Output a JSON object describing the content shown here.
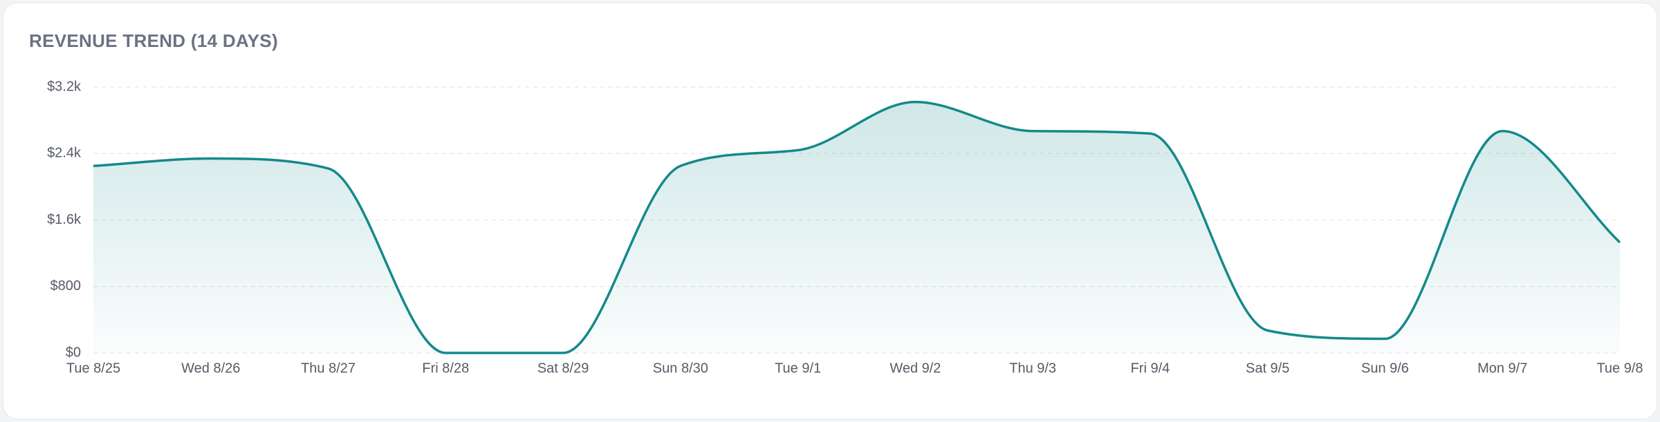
{
  "chart_data": {
    "type": "area",
    "title": "REVENUE TREND (14 DAYS)",
    "categories": [
      "Tue 8/25",
      "Wed 8/26",
      "Thu 8/27",
      "Fri 8/28",
      "Sat 8/29",
      "Sun 8/30",
      "Tue 9/1",
      "Wed 9/2",
      "Thu 9/3",
      "Fri 9/4",
      "Sat 9/5",
      "Sun 9/6",
      "Mon 9/7",
      "Tue 9/8"
    ],
    "values": [
      2250,
      2340,
      2220,
      0,
      0,
      2250,
      2440,
      3020,
      2670,
      2640,
      270,
      170,
      2670,
      1330
    ],
    "color": "#14898a",
    "ylim": [
      0,
      3200
    ],
    "yticks": [
      {
        "value": 0,
        "label": "$0"
      },
      {
        "value": 800,
        "label": "$800"
      },
      {
        "value": 1600,
        "label": "$1.6k"
      },
      {
        "value": 2400,
        "label": "$2.4k"
      },
      {
        "value": 3200,
        "label": "$3.2k"
      }
    ],
    "grid": true
  }
}
